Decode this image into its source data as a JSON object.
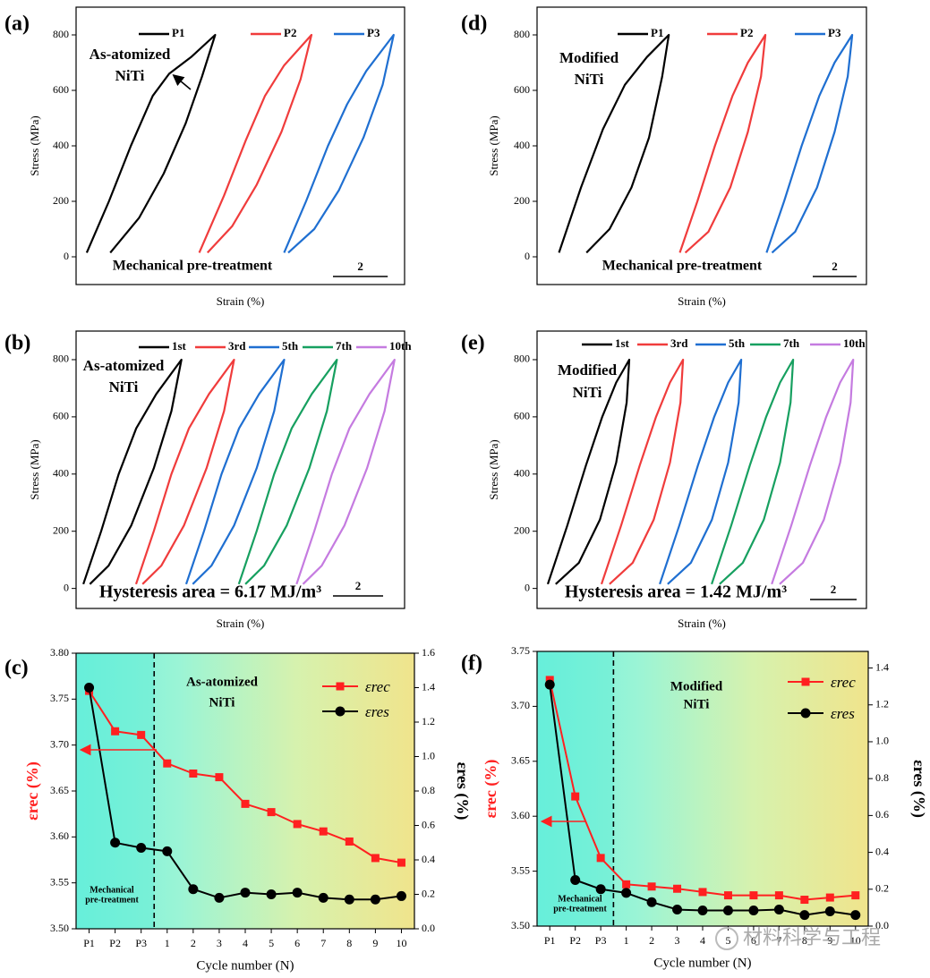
{
  "chart_data": [
    {
      "type": "line",
      "label": "(a)",
      "xlabel": "Strain (%)",
      "ylabel": "Stress (MPa)",
      "xlim": [
        0,
        12
      ],
      "ylim": [
        -100,
        900
      ],
      "yticks": [
        0,
        200,
        400,
        600,
        800
      ],
      "scale_bar": 2,
      "annotations": [
        "As-atomized",
        "NiTi",
        "Mechanical pre-treatment"
      ],
      "series": [
        {
          "name": "P1",
          "color": "#000000",
          "x": [
            0.39,
            1.2,
            2.0,
            2.8,
            3.4,
            4.2,
            5.08,
            4.6,
            4.0,
            3.2,
            2.3,
            1.25
          ],
          "values": [
            15,
            200,
            400,
            580,
            660,
            720,
            800,
            650,
            480,
            300,
            140,
            15
          ]
        },
        {
          "name": "P2",
          "color": "#f03c3c",
          "x": [
            4.5,
            5.4,
            6.2,
            6.9,
            7.6,
            8.6,
            8.2,
            7.5,
            6.6,
            5.7,
            4.8
          ],
          "values": [
            15,
            220,
            420,
            580,
            690,
            800,
            640,
            450,
            260,
            110,
            15
          ]
        },
        {
          "name": "P3",
          "color": "#1f6fd1",
          "x": [
            7.6,
            8.4,
            9.2,
            9.9,
            10.6,
            11.6,
            11.2,
            10.5,
            9.6,
            8.7,
            7.75
          ],
          "values": [
            15,
            200,
            400,
            550,
            670,
            800,
            620,
            430,
            240,
            100,
            15
          ]
        }
      ]
    },
    {
      "type": "line",
      "label": "(b)",
      "xlabel": "Strain (%)",
      "ylabel": "Stress (MPa)",
      "xlim": [
        0,
        13.1
      ],
      "ylim": [
        -70,
        900
      ],
      "yticks": [
        0,
        200,
        400,
        600,
        800
      ],
      "scale_bar": 2,
      "annotations": [
        "As-atomized",
        "NiTi",
        "Hysteresis area = 6.17 MJ/m³"
      ],
      "series": [
        {
          "name": "1st",
          "color": "#000000",
          "x": [
            0.29,
            1.0,
            1.7,
            2.4,
            3.2,
            4.2,
            3.8,
            3.1,
            2.2,
            1.3,
            0.55
          ],
          "values": [
            15,
            200,
            400,
            560,
            680,
            800,
            620,
            420,
            220,
            80,
            15
          ]
        },
        {
          "name": "3rd",
          "color": "#f03c3c",
          "x": [
            2.39,
            3.1,
            3.8,
            4.5,
            5.3,
            6.3,
            5.9,
            5.2,
            4.3,
            3.4,
            2.65
          ],
          "values": [
            15,
            200,
            400,
            560,
            680,
            800,
            620,
            420,
            220,
            80,
            15
          ]
        },
        {
          "name": "5th",
          "color": "#1f6fd1",
          "x": [
            4.39,
            5.1,
            5.8,
            6.5,
            7.3,
            8.3,
            7.9,
            7.2,
            6.3,
            5.4,
            4.65
          ],
          "values": [
            15,
            200,
            400,
            560,
            680,
            800,
            620,
            420,
            220,
            80,
            15
          ]
        },
        {
          "name": "7th",
          "color": "#17a060",
          "x": [
            6.49,
            7.2,
            7.9,
            8.6,
            9.4,
            10.4,
            10.0,
            9.3,
            8.4,
            7.5,
            6.75
          ],
          "values": [
            15,
            200,
            400,
            560,
            680,
            800,
            620,
            420,
            220,
            80,
            15
          ]
        },
        {
          "name": "10th",
          "color": "#c57be0",
          "x": [
            8.79,
            9.5,
            10.2,
            10.9,
            11.7,
            12.7,
            12.3,
            11.6,
            10.7,
            9.8,
            9.05
          ],
          "values": [
            15,
            200,
            400,
            560,
            680,
            800,
            620,
            420,
            220,
            80,
            15
          ]
        }
      ]
    },
    {
      "type": "line",
      "label": "(c)",
      "xlabel": "Cycle number (N)",
      "ylabel": "εrec (%)",
      "y2label": "εres (%)",
      "categories": [
        "P1",
        "P2",
        "P3",
        "1",
        "2",
        "3",
        "4",
        "5",
        "6",
        "7",
        "8",
        "9",
        "10"
      ],
      "ylim": [
        3.5,
        3.8
      ],
      "yticks": [
        {
          "value": 3.5,
          "label": "3.50"
        },
        3.55,
        {
          "value": 3.6,
          "label": "3.60"
        },
        3.65,
        {
          "value": 3.7,
          "label": "3.70"
        },
        3.75,
        {
          "value": 3.8,
          "label": "3.80"
        }
      ],
      "y2lim": [
        0,
        1.6
      ],
      "y2ticks": [
        {
          "value": 0,
          "label": "0.0"
        },
        0.2,
        0.4,
        0.6,
        0.8,
        {
          "value": 1,
          "label": "1.0"
        },
        1.2,
        1.4,
        1.6
      ],
      "annotations": [
        "As-atomized",
        "NiTi",
        "Mechanical",
        "pre-treatment"
      ],
      "series": [
        {
          "name": "εrec",
          "color": "#ff2020",
          "marker": "square",
          "values": [
            3.759,
            3.715,
            3.711,
            3.68,
            3.669,
            3.665,
            3.636,
            3.627,
            3.614,
            3.606,
            3.595,
            3.577,
            3.572
          ]
        },
        {
          "name": "εres",
          "color": "#000000",
          "marker": "circle",
          "axis": "y2",
          "values": [
            1.4,
            0.5,
            0.47,
            0.45,
            0.23,
            0.18,
            0.21,
            0.2,
            0.21,
            0.18,
            0.17,
            0.17,
            0.19
          ]
        }
      ]
    },
    {
      "type": "line",
      "label": "(d)",
      "xlabel": "Strain (%)",
      "ylabel": "Stress (MPa)",
      "xlim": [
        0,
        15
      ],
      "ylim": [
        -100,
        900
      ],
      "yticks": [
        0,
        200,
        400,
        600,
        800
      ],
      "scale_bar": 2,
      "annotations": [
        "Modified",
        "NiTi",
        "Mechanical pre-treatment"
      ],
      "series": [
        {
          "name": "P1",
          "color": "#000000",
          "x": [
            1.0,
            2.0,
            3.0,
            4.0,
            5.0,
            6.0,
            5.7,
            5.1,
            4.3,
            3.3,
            2.25
          ],
          "values": [
            15,
            250,
            460,
            620,
            720,
            800,
            650,
            430,
            250,
            100,
            15
          ]
        },
        {
          "name": "P2",
          "color": "#f03c3c",
          "x": [
            6.5,
            7.3,
            8.1,
            8.9,
            9.6,
            10.4,
            10.2,
            9.6,
            8.8,
            7.8,
            6.75
          ],
          "values": [
            15,
            200,
            400,
            580,
            700,
            800,
            650,
            450,
            250,
            90,
            15
          ]
        },
        {
          "name": "P3",
          "color": "#1f6fd1",
          "x": [
            10.45,
            11.25,
            12.05,
            12.85,
            13.55,
            14.35,
            14.15,
            13.55,
            12.75,
            11.75,
            10.7
          ],
          "values": [
            15,
            200,
            400,
            580,
            700,
            800,
            650,
            450,
            250,
            90,
            15
          ]
        }
      ]
    },
    {
      "type": "line",
      "label": "(e)",
      "xlabel": "Strain (%)",
      "ylabel": "Stress (MPa)",
      "xlim": [
        0,
        14.15
      ],
      "ylim": [
        -70,
        900
      ],
      "yticks": [
        0,
        200,
        400,
        600,
        800
      ],
      "scale_bar": 2,
      "annotations": [
        "Modified",
        "NiTi",
        "Hysteresis area = 1.42 MJ/m³"
      ],
      "series": [
        {
          "name": "1st",
          "color": "#000000",
          "x": [
            0.46,
            1.3,
            2.1,
            2.8,
            3.4,
            3.96,
            3.85,
            3.4,
            2.7,
            1.8,
            0.8
          ],
          "values": [
            15,
            220,
            430,
            600,
            720,
            800,
            650,
            440,
            240,
            90,
            15
          ]
        },
        {
          "name": "3rd",
          "color": "#f03c3c",
          "x": [
            2.77,
            3.61,
            4.41,
            5.11,
            5.71,
            6.27,
            6.16,
            5.71,
            5.01,
            4.11,
            3.11
          ],
          "values": [
            15,
            220,
            430,
            600,
            720,
            800,
            650,
            440,
            240,
            90,
            15
          ]
        },
        {
          "name": "5th",
          "color": "#1f6fd1",
          "x": [
            5.27,
            6.11,
            6.91,
            7.61,
            8.21,
            8.77,
            8.66,
            8.21,
            7.51,
            6.61,
            5.61
          ],
          "values": [
            15,
            220,
            430,
            600,
            720,
            800,
            650,
            440,
            240,
            90,
            15
          ]
        },
        {
          "name": "7th",
          "color": "#17a060",
          "x": [
            7.5,
            8.34,
            9.14,
            9.84,
            10.44,
            11.0,
            10.89,
            10.44,
            9.74,
            8.84,
            7.84
          ],
          "values": [
            15,
            220,
            430,
            600,
            720,
            800,
            650,
            440,
            240,
            90,
            15
          ]
        },
        {
          "name": "10th",
          "color": "#c57be0",
          "x": [
            10.08,
            10.92,
            11.72,
            12.42,
            13.02,
            13.58,
            13.47,
            13.02,
            12.32,
            11.42,
            10.42
          ],
          "values": [
            15,
            220,
            430,
            600,
            720,
            800,
            650,
            440,
            240,
            90,
            15
          ]
        }
      ]
    },
    {
      "type": "line",
      "label": "(f)",
      "xlabel": "Cycle number (N)",
      "ylabel": "εrec (%)",
      "y2label": "εres (%)",
      "categories": [
        "P1",
        "P2",
        "P3",
        "1",
        "2",
        "3",
        "4",
        "5",
        "6",
        "7",
        "8",
        "9",
        "10"
      ],
      "ylim": [
        3.5,
        3.75
      ],
      "yticks": [
        {
          "value": 3.5,
          "label": "3.50"
        },
        3.55,
        {
          "value": 3.6,
          "label": "3.60"
        },
        3.65,
        {
          "value": 3.7,
          "label": "3.70"
        },
        3.75
      ],
      "y2lim": [
        0,
        1.49
      ],
      "y2ticks": [
        {
          "value": 0,
          "label": "0.0"
        },
        0.2,
        0.4,
        0.6,
        0.8,
        {
          "value": 1,
          "label": "1.0"
        },
        1.2,
        1.4
      ],
      "annotations": [
        "Modified",
        "NiTi",
        "Mechanical",
        "pre-treatment"
      ],
      "series": [
        {
          "name": "εrec",
          "color": "#ff2020",
          "marker": "square",
          "values": [
            3.724,
            3.618,
            3.562,
            3.538,
            3.536,
            3.534,
            3.531,
            3.528,
            3.528,
            3.528,
            3.524,
            3.526,
            3.528
          ]
        },
        {
          "name": "εres",
          "color": "#000000",
          "marker": "circle",
          "axis": "y2",
          "values": [
            1.31,
            0.25,
            0.2,
            0.18,
            0.13,
            0.09,
            0.085,
            0.085,
            0.085,
            0.09,
            0.06,
            0.08,
            0.06
          ]
        }
      ]
    }
  ],
  "watermark": "材料科学与工程"
}
